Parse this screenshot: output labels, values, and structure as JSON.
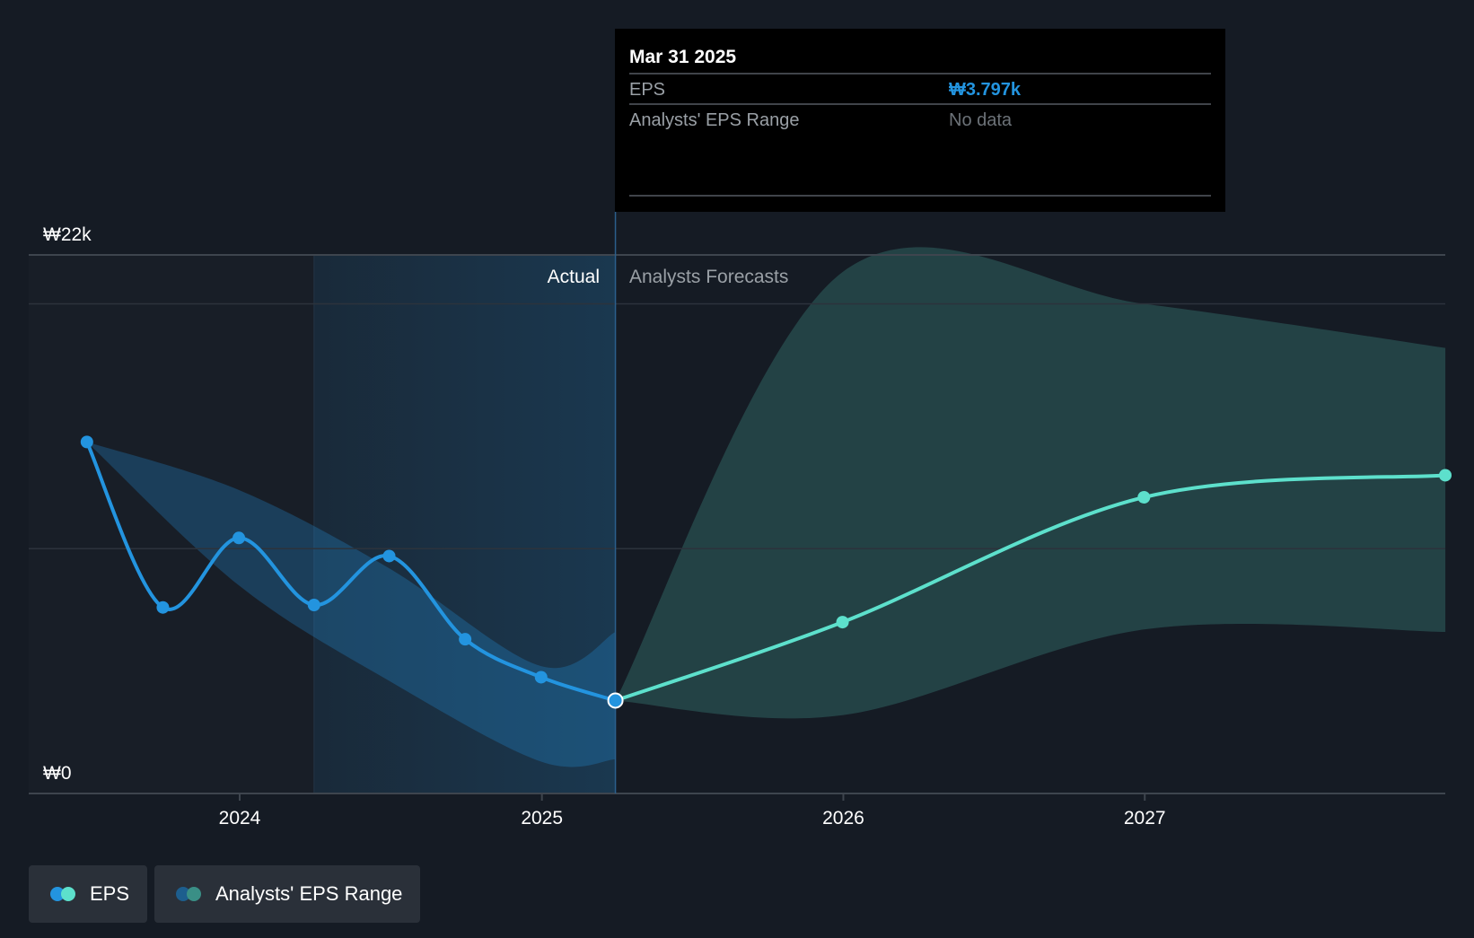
{
  "chart_data": {
    "type": "line",
    "y_axis": {
      "labels": [
        "₩22k",
        "₩0"
      ],
      "ylim": [
        0,
        22000
      ],
      "grid": true
    },
    "x_axis": {
      "tick_labels": [
        "2024",
        "2025",
        "2026",
        "2027"
      ]
    },
    "sections": {
      "actual_label": "Actual",
      "forecast_label": "Analysts Forecasts"
    },
    "tooltip": {
      "date": "Mar 31 2025",
      "rows": [
        {
          "label": "EPS",
          "value": "₩3.797k"
        },
        {
          "label": "Analysts' EPS Range",
          "value": "No data"
        }
      ]
    },
    "series": [
      {
        "name": "EPS",
        "kind": "actual",
        "color": "#2394df",
        "points": [
          {
            "x": "2023-06-30",
            "y": 14360
          },
          {
            "x": "2023-09-30",
            "y": 7600
          },
          {
            "x": "2023-12-31",
            "y": 10440
          },
          {
            "x": "2024-03-31",
            "y": 7700
          },
          {
            "x": "2024-06-30",
            "y": 9700
          },
          {
            "x": "2024-09-30",
            "y": 6300
          },
          {
            "x": "2024-12-31",
            "y": 4750
          },
          {
            "x": "2025-03-31",
            "y": 3797
          }
        ]
      },
      {
        "name": "EPS",
        "kind": "forecast",
        "color": "#5de0cc",
        "points": [
          {
            "x": "2025-03-31",
            "y": 3797
          },
          {
            "x": "2025-12-31",
            "y": 7000
          },
          {
            "x": "2026-12-31",
            "y": 12100
          },
          {
            "x": "2027-12-31",
            "y": 13000
          }
        ]
      },
      {
        "name": "Analysts' EPS Range",
        "kind": "actual-range",
        "color": "#2394df",
        "upper": [
          {
            "x": "2023-06-30",
            "y": 14360
          },
          {
            "x": "2023-12-31",
            "y": 12400
          },
          {
            "x": "2024-06-30",
            "y": 9200
          },
          {
            "x": "2024-12-31",
            "y": 5200
          },
          {
            "x": "2025-03-31",
            "y": 6600
          }
        ],
        "lower": [
          {
            "x": "2023-06-30",
            "y": 14360
          },
          {
            "x": "2023-12-31",
            "y": 8500
          },
          {
            "x": "2024-06-30",
            "y": 4600
          },
          {
            "x": "2024-12-31",
            "y": 1300
          },
          {
            "x": "2025-03-31",
            "y": 1400
          }
        ]
      },
      {
        "name": "Analysts' EPS Range",
        "kind": "forecast-range",
        "color": "#5de0cc",
        "upper": [
          {
            "x": "2025-03-31",
            "y": 3797
          },
          {
            "x": "2025-12-31",
            "y": 21300
          },
          {
            "x": "2026-12-31",
            "y": 20000
          },
          {
            "x": "2027-12-31",
            "y": 18200
          }
        ],
        "lower": [
          {
            "x": "2025-03-31",
            "y": 3797
          },
          {
            "x": "2025-12-31",
            "y": 3200
          },
          {
            "x": "2026-12-31",
            "y": 6700
          },
          {
            "x": "2027-12-31",
            "y": 6600
          }
        ]
      }
    ]
  },
  "legend": {
    "items": [
      "EPS",
      "Analysts' EPS Range"
    ]
  },
  "colors": {
    "background": "#151b24",
    "eps_actual": "#2394df",
    "eps_forecast": "#5de0cc",
    "legend_bg": "#2a3039"
  }
}
